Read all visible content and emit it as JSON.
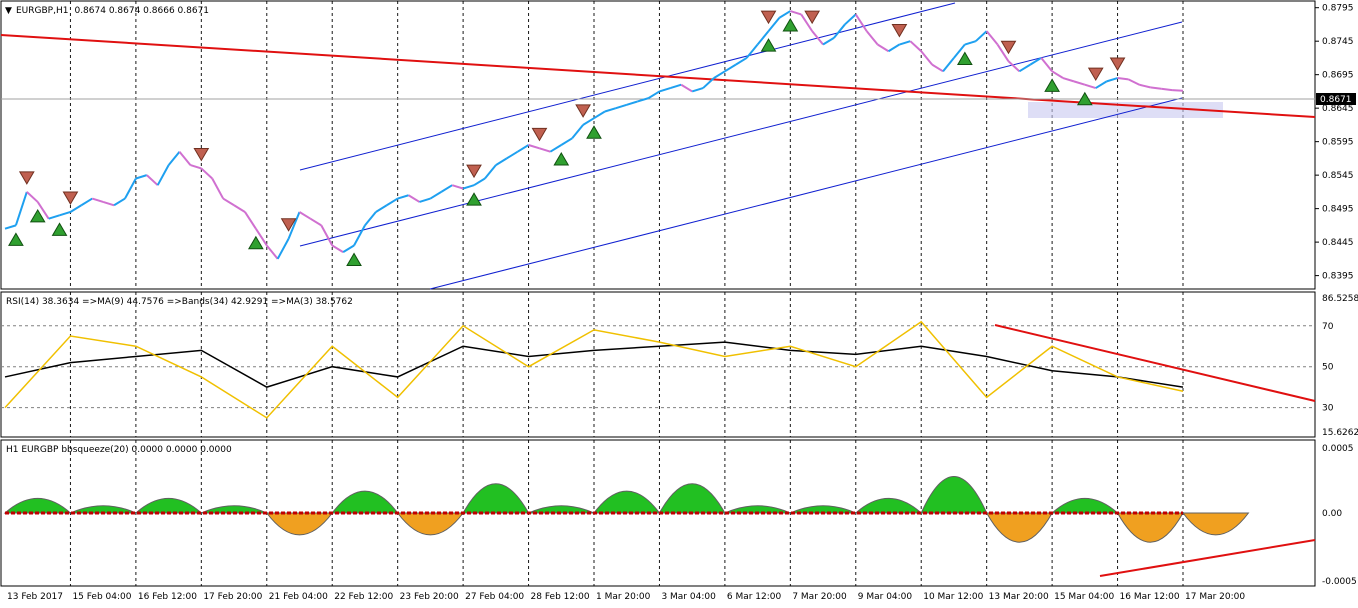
{
  "window": {
    "symbol_title": "EURGBP,H1",
    "ohlc": "0.8674 0.8674 0.8666 0.8671",
    "bid_label": "0.8671"
  },
  "chart_data": [
    {
      "type": "line",
      "name": "price",
      "title": "EURGBP,H1  0.8674 0.8674 0.8666 0.8671",
      "y_ticks": [
        "0.8795",
        "0.8745",
        "0.8695",
        "0.8645",
        "0.8595",
        "0.8545",
        "0.8495",
        "0.8445",
        "0.8395"
      ],
      "ylim": [
        0.8375,
        0.8805
      ],
      "x_ticks": [
        "13 Feb 2017",
        "15 Feb 04:00",
        "16 Feb 12:00",
        "17 Feb 20:00",
        "21 Feb 04:00",
        "22 Feb 12:00",
        "23 Feb 20:00",
        "27 Feb 04:00",
        "28 Feb 12:00",
        "1 Mar 20:00",
        "3 Mar 04:00",
        "6 Mar 12:00",
        "7 Mar 20:00",
        "9 Mar 04:00",
        "10 Mar 12:00",
        "13 Mar 20:00",
        "15 Mar 04:00",
        "16 Mar 12:00",
        "17 Mar 20:00"
      ],
      "x_index": [
        0,
        6,
        12,
        18,
        24,
        30,
        36,
        42,
        48,
        54,
        60,
        66,
        72,
        78,
        84,
        90,
        96,
        102,
        108
      ],
      "series": [
        {
          "x": [
            0,
            1,
            2,
            3,
            4,
            5,
            6,
            7,
            8,
            9,
            10,
            11,
            12,
            13,
            14,
            15,
            16,
            17,
            18,
            19,
            20,
            21,
            22,
            23,
            24,
            25,
            26,
            27,
            28,
            29,
            30,
            31,
            32,
            33,
            34,
            35,
            36,
            37,
            38,
            39,
            40,
            41,
            42,
            43,
            44,
            45,
            46,
            47,
            48,
            49,
            50,
            51,
            52,
            53,
            54,
            55,
            56,
            57,
            58,
            59,
            60,
            61,
            62,
            63,
            64,
            65,
            66,
            67,
            68,
            69,
            70,
            71,
            72,
            73,
            74,
            75,
            76,
            77,
            78,
            79,
            80,
            81,
            82,
            83,
            84,
            85,
            86,
            87,
            88,
            89,
            90,
            91,
            92,
            93,
            94,
            95,
            96,
            97,
            98,
            99,
            100,
            101,
            102,
            103,
            104,
            105,
            106,
            107,
            108
          ],
          "y": [
            0.8465,
            0.847,
            0.852,
            0.8505,
            0.848,
            0.8485,
            0.849,
            0.85,
            0.851,
            0.8505,
            0.85,
            0.851,
            0.854,
            0.8545,
            0.853,
            0.856,
            0.858,
            0.856,
            0.8555,
            0.854,
            0.851,
            0.85,
            0.849,
            0.8465,
            0.844,
            0.842,
            0.845,
            0.849,
            0.848,
            0.847,
            0.844,
            0.843,
            0.844,
            0.847,
            0.849,
            0.85,
            0.851,
            0.8515,
            0.8505,
            0.851,
            0.852,
            0.853,
            0.8525,
            0.853,
            0.854,
            0.856,
            0.857,
            0.858,
            0.859,
            0.8585,
            0.858,
            0.859,
            0.86,
            0.862,
            0.863,
            0.864,
            0.8645,
            0.865,
            0.8655,
            0.866,
            0.867,
            0.8675,
            0.868,
            0.867,
            0.8675,
            0.869,
            0.87,
            0.871,
            0.872,
            0.874,
            0.876,
            0.878,
            0.879,
            0.8785,
            0.876,
            0.874,
            0.875,
            0.877,
            0.8785,
            0.876,
            0.874,
            0.873,
            0.874,
            0.8745,
            0.873,
            0.871,
            0.87,
            0.872,
            0.874,
            0.8745,
            0.876,
            0.874,
            0.8715,
            0.87,
            0.871,
            0.872,
            0.87,
            0.869,
            0.8685,
            0.868,
            0.8675,
            0.8685,
            0.869,
            0.8688,
            0.868,
            0.8676,
            0.8674,
            0.8672,
            0.8671
          ]
        }
      ],
      "markers": {
        "sell": [
          2,
          6,
          18,
          26,
          43,
          49,
          53,
          70,
          74,
          82,
          92,
          100,
          102
        ],
        "buy": [
          1,
          3,
          5,
          23,
          32,
          43,
          51,
          54,
          70,
          72,
          88,
          96,
          99
        ]
      }
    },
    {
      "type": "line",
      "name": "rsi",
      "title": "RSI(14) 38.3634  =>MA(9) 44.7576  =>Bands(34) 42.9291  =>MA(3) 38.5762",
      "y_ticks": [
        "86.5258",
        "70",
        "50",
        "30",
        "15.6262"
      ],
      "ylim": [
        15.6262,
        86.5258
      ],
      "series": [
        {
          "x": [
            0,
            6,
            12,
            18,
            24,
            30,
            36,
            42,
            48,
            54,
            60,
            66,
            72,
            78,
            84,
            90,
            96,
            102,
            108
          ],
          "y": [
            45,
            52,
            55,
            58,
            40,
            50,
            45,
            60,
            55,
            58,
            60,
            62,
            58,
            56,
            60,
            55,
            48,
            45,
            40
          ]
        },
        {
          "x": [
            0,
            6,
            12,
            18,
            24,
            30,
            36,
            42,
            48,
            54,
            60,
            66,
            72,
            78,
            84,
            90,
            96,
            102,
            108
          ],
          "y": [
            30,
            65,
            60,
            45,
            25,
            60,
            35,
            70,
            50,
            68,
            62,
            55,
            60,
            50,
            72,
            35,
            60,
            45,
            38
          ]
        }
      ]
    },
    {
      "type": "area",
      "name": "bbsqueeze",
      "title": "H1 EURGBP bbsqueeze(20) 0.0000 0.0000 0.0000",
      "y_ticks": [
        "0.0005",
        "0.00",
        "-0.0005"
      ],
      "ylim": [
        -0.0005,
        0.0005
      ],
      "series": [
        {
          "x": [
            0,
            6,
            12,
            18,
            24,
            30,
            36,
            42,
            48,
            54,
            60,
            66,
            72,
            78,
            84,
            90,
            96,
            102,
            108
          ],
          "y": [
            0.0002,
            0.0001,
            0.0002,
            0.0001,
            -0.0003,
            0.0003,
            -0.0003,
            0.0004,
            0.0001,
            0.0003,
            0.0004,
            0.0001,
            0.0001,
            0.0002,
            0.0005,
            -0.0004,
            0.0002,
            -0.0004,
            -0.0003
          ]
        }
      ]
    }
  ]
}
